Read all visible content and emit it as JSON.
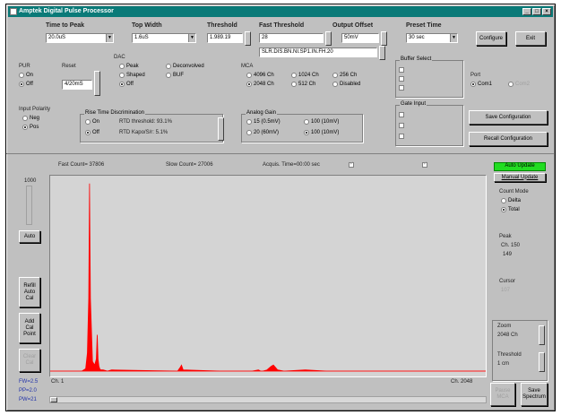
{
  "window": {
    "title": "Amptek Digital Pulse Processor",
    "minimize": "_",
    "maximize": "□",
    "close": "×"
  },
  "top": {
    "time_to_peak": {
      "label": "Time to Peak",
      "value": "20.0uS"
    },
    "top_width": {
      "label": "Top Width",
      "value": "1.6uS"
    },
    "threshold": {
      "label": "Threshold",
      "value": "1.989.19"
    },
    "fast_threshold": {
      "label": "Fast Threshold",
      "value": "28",
      "detail": "SLR.DIS.BN.NI.SP1.IN.FH.20"
    },
    "output_offset": {
      "label": "Output Offset",
      "value": "50mV"
    },
    "preset_time": {
      "label": "Preset Time",
      "value": "30 sec"
    },
    "configure_button": "Configure",
    "exit_button": "Exit"
  },
  "pur": {
    "label": "PUR",
    "on": "On",
    "off": "Off",
    "selected": "off"
  },
  "reset": {
    "label": "Reset",
    "value": "4/20mS"
  },
  "dac": {
    "label": "DAC",
    "peak": "Peak",
    "shaped": "Shaped",
    "off": "Off",
    "deconvolved": "Deconvolved",
    "buffered": "BUF",
    "selected": "off"
  },
  "mca": {
    "label": "MCA",
    "options": [
      "4096 Ch",
      "1024 Ch",
      "256 Ch",
      "2048 Ch",
      "512 Ch",
      "Disabled"
    ],
    "selected": "2048 Ch"
  },
  "input_polarity": {
    "label": "Input Polarity",
    "neg": "Neg",
    "pos": "Pos"
  },
  "rise_time": {
    "label": "Rise Time Discrimination",
    "on": "On",
    "off": "Off",
    "row1": "RTD threshold: 93.1%",
    "row2": "RTD Kapo/S/r: 5.1%"
  },
  "analog_gain": {
    "label": "Analog Gain",
    "options": [
      "15 (0.5mV)",
      "100 (10mV)",
      "20 (60mV)",
      "100 (10mV)"
    ],
    "selected": "100 (10mV)"
  },
  "buffer_select": {
    "label": "Buffer Select"
  },
  "gate_input": {
    "label": "Gate Input"
  },
  "port": {
    "label": "Port",
    "com1": "Com1",
    "com2": "Com2"
  },
  "save_config_button": "Save Configuration",
  "recall_config_button": "Recall Configuration",
  "status": {
    "fast_count": "Fast Count= 37806",
    "slow_count": "Slow Count= 27006",
    "acquisition": "Acquis. Time=00:00 sec"
  },
  "left_controls": {
    "scale_label": "1000",
    "auto_button": "Auto",
    "refresh_button": "Refill\nAuto\nCal",
    "add_button": "Add\nCal\nPoint",
    "clear_button": "Clear\nCal"
  },
  "right_panel": {
    "auto_update": "Auto Update",
    "manual_update": "Manual Update",
    "count_mode_label": "Count Mode",
    "delta": "Delta",
    "total": "Total",
    "peak_label": "Peak",
    "peak_channel": "Ch. 150",
    "peak_value": "149",
    "cursor_label": "Cursor",
    "cursor_value": "107",
    "zoom_label": "Zoom",
    "zoom_value": "2048 Ch",
    "threshold_label": "Threshold",
    "threshold_value": "1 cm"
  },
  "bottom": {
    "ch_label": "Ch. 1",
    "ch_end": "Ch. 2048",
    "fwhm_line": "FW=2.5",
    "pp_line": "PP=2.0",
    "pw_line": "PW=21",
    "pause_button": "Pause\nMCA",
    "save_spectrum_button": "Save\nSpectrum"
  },
  "colors": {
    "spectrum": "#ff0000",
    "accent_green": "#22dd22",
    "title": "#0a7a78"
  },
  "chart_data": {
    "type": "line",
    "xlim": [
      1,
      2048
    ],
    "x": [
      1,
      50,
      100,
      150,
      168,
      176,
      182,
      186,
      190,
      200,
      210,
      218,
      222,
      226,
      230,
      234,
      238,
      250,
      270,
      290,
      600,
      612,
      618,
      626,
      800,
      950,
      980,
      990,
      1000,
      1020,
      1040,
      1050,
      1060,
      1070,
      1100,
      1200,
      1300,
      1500,
      1700,
      1900,
      2048
    ],
    "y": [
      0,
      0,
      0,
      0,
      2,
      15,
      60,
      155,
      60,
      8,
      5,
      10,
      30,
      10,
      4,
      2,
      1,
      1,
      0,
      1,
      0,
      3,
      5,
      1,
      0,
      0,
      1,
      0,
      0,
      1,
      4,
      5,
      3,
      1,
      0,
      1,
      0,
      0,
      0,
      0,
      0
    ]
  }
}
